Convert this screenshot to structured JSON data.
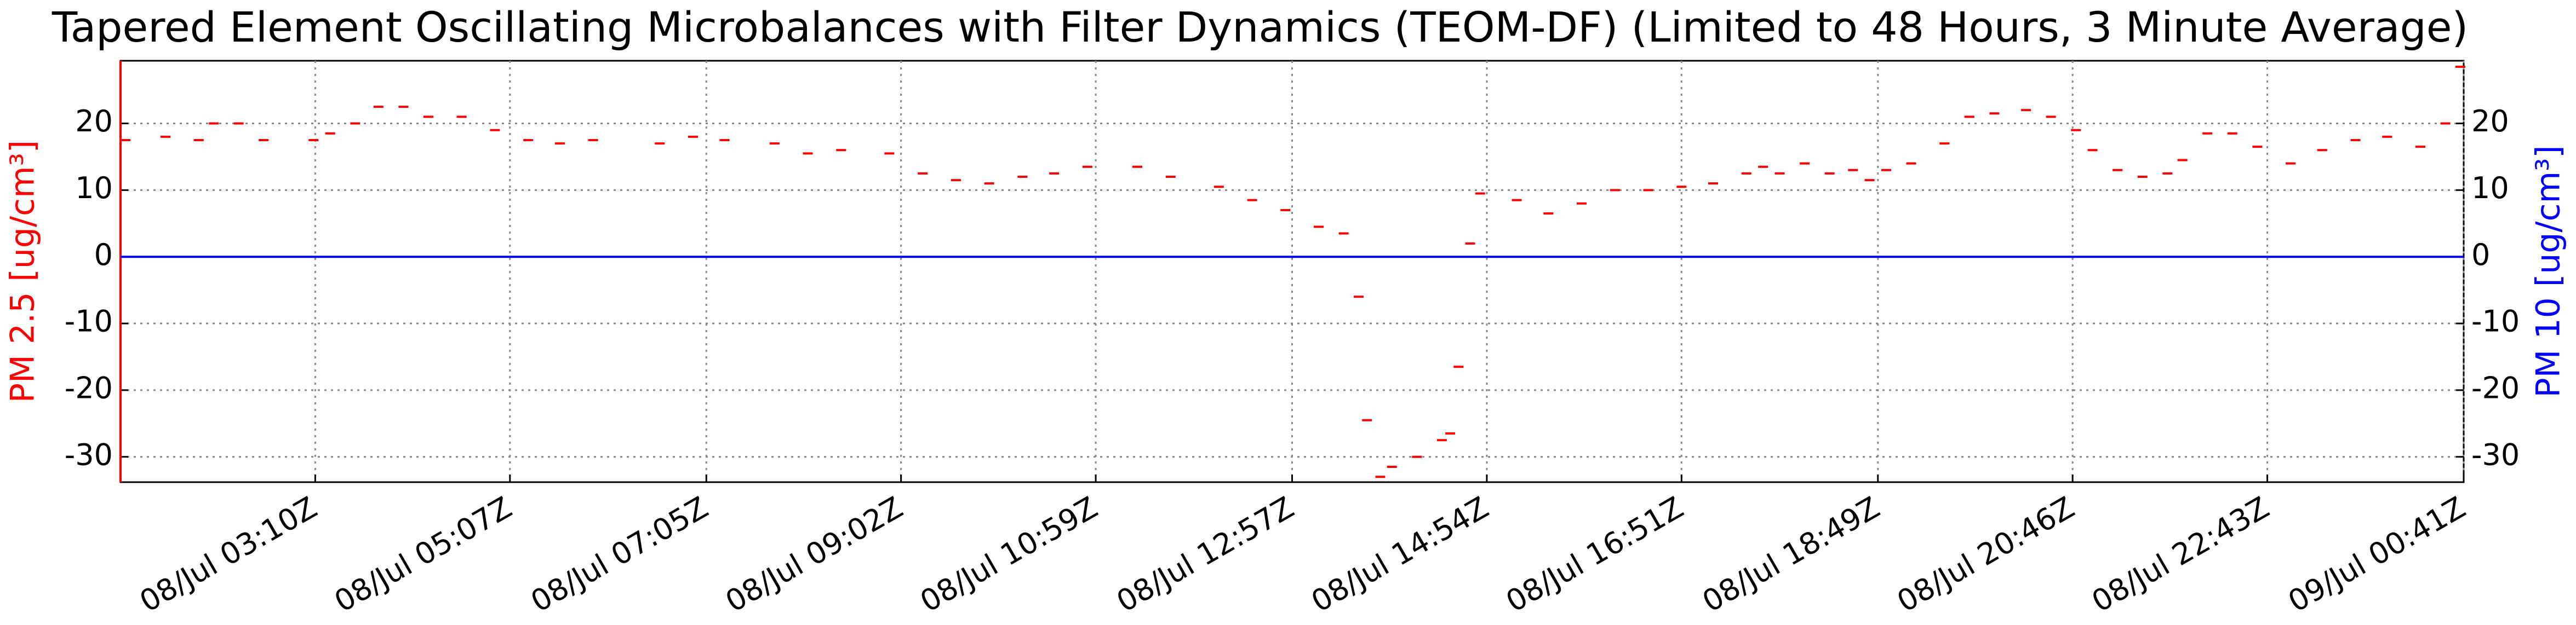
{
  "chart_data": {
    "type": "line",
    "title": "Tapered Element Oscillating Microbalances with Filter Dynamics (TEOM-DF) (Limited to 48 Hours, 3 Minute Average)",
    "ylabel": "PM 2.5 [ug/cm³]",
    "y2label": "PM 10 [ug/cm³]",
    "xlim": [
      73,
      1481
    ],
    "xticks": [
      {
        "value": 190,
        "label": "08/Jul 03:10Z"
      },
      {
        "value": 307,
        "label": "08/Jul 05:07Z"
      },
      {
        "value": 425,
        "label": "08/Jul 07:05Z"
      },
      {
        "value": 542,
        "label": "08/Jul 09:02Z"
      },
      {
        "value": 659,
        "label": "08/Jul 10:59Z"
      },
      {
        "value": 777,
        "label": "08/Jul 12:57Z"
      },
      {
        "value": 894,
        "label": "08/Jul 14:54Z"
      },
      {
        "value": 1011,
        "label": "08/Jul 16:51Z"
      },
      {
        "value": 1129,
        "label": "08/Jul 18:49Z"
      },
      {
        "value": 1246,
        "label": "08/Jul 20:46Z"
      },
      {
        "value": 1363,
        "label": "08/Jul 22:43Z"
      },
      {
        "value": 1481,
        "label": "09/Jul 00:41Z"
      }
    ],
    "ylim": [
      -33.8,
      29.4
    ],
    "yticks": [
      -30,
      -20,
      -10,
      0,
      10,
      20
    ],
    "y2lim": [
      -33.8,
      29.4
    ],
    "y2ticks": [
      -30,
      -20,
      -10,
      0,
      10,
      20
    ],
    "grid": true,
    "series": [
      {
        "name": "PM 2.5",
        "color": "#ff0000",
        "style": "dash",
        "x": [
          76,
          100,
          120,
          129,
          144,
          159,
          189,
          199,
          214,
          228,
          243,
          258,
          278,
          298,
          318,
          337,
          357,
          397,
          417,
          436,
          466,
          486,
          506,
          535,
          555,
          575,
          595,
          615,
          634,
          654,
          684,
          704,
          733,
          753,
          773,
          793,
          808,
          817,
          822,
          830,
          837,
          852,
          867,
          872,
          877,
          884,
          890,
          912,
          931,
          951,
          971,
          991,
          1011,
          1030,
          1050,
          1060,
          1070,
          1085,
          1100,
          1114,
          1124,
          1134,
          1149,
          1169,
          1184,
          1199,
          1218,
          1233,
          1248,
          1258,
          1273,
          1288,
          1303,
          1312,
          1327,
          1342,
          1357,
          1377,
          1396,
          1416,
          1435,
          1455,
          1470,
          1479
        ],
        "values": [
          17.5,
          18,
          17.5,
          20,
          20,
          17.5,
          17.5,
          18.5,
          20,
          22.5,
          22.5,
          21,
          21,
          19,
          17.5,
          17,
          17.5,
          17,
          18,
          17.5,
          17,
          15.5,
          16,
          15.5,
          12.5,
          11.5,
          11,
          12,
          12.5,
          13.5,
          13.5,
          12,
          10.5,
          8.5,
          7,
          4.5,
          3.5,
          -6,
          -24.5,
          -33,
          -31.5,
          -30,
          -27.5,
          -26.5,
          -16.5,
          2,
          9.5,
          8.5,
          6.5,
          8,
          10,
          10,
          10.5,
          11,
          12.5,
          13.5,
          12.5,
          14,
          12.5,
          13,
          11.5,
          13,
          14,
          17,
          21,
          21.5,
          22,
          21,
          19,
          16,
          13,
          12,
          12.5,
          14.5,
          18.5,
          18.5,
          16.5,
          14,
          16,
          17.5,
          18,
          16.5,
          20,
          28.5
        ]
      },
      {
        "name": "PM 10",
        "color": "#0000ff",
        "axis": "y2",
        "x": [
          73,
          1481
        ],
        "values": [
          0,
          0
        ]
      }
    ]
  }
}
